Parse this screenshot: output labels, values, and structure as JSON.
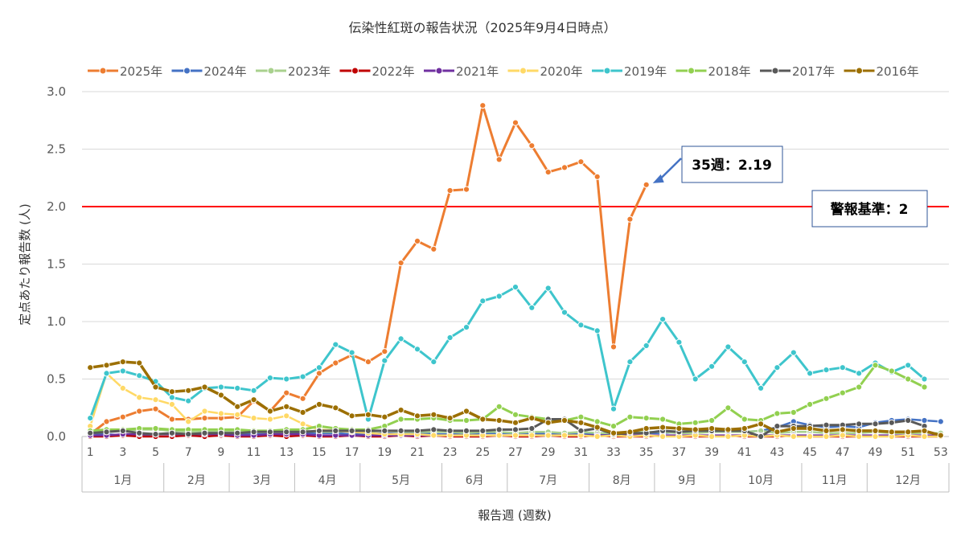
{
  "chart_data": {
    "type": "line",
    "title": "伝染性紅斑の報告状況（2025年9月4日時点）",
    "xlabel": "報告週 (週数)",
    "ylabel": "定点あたり報告数 (人)",
    "ylim": [
      0,
      3
    ],
    "yticks": [
      "0.0",
      "0.5",
      "1.0",
      "1.5",
      "2.0",
      "2.5",
      "3.0"
    ],
    "xticks": [
      1,
      3,
      5,
      7,
      9,
      11,
      13,
      15,
      17,
      19,
      21,
      23,
      25,
      27,
      29,
      31,
      33,
      35,
      37,
      39,
      41,
      43,
      45,
      47,
      49,
      51,
      53
    ],
    "month_groups": [
      {
        "label": "1月",
        "from": 1,
        "to": 5
      },
      {
        "label": "2月",
        "from": 6,
        "to": 9
      },
      {
        "label": "3月",
        "from": 10,
        "to": 13
      },
      {
        "label": "4月",
        "from": 14,
        "to": 17
      },
      {
        "label": "5月",
        "from": 18,
        "to": 22
      },
      {
        "label": "6月",
        "from": 23,
        "to": 26
      },
      {
        "label": "7月",
        "from": 27,
        "to": 31
      },
      {
        "label": "8月",
        "from": 32,
        "to": 35
      },
      {
        "label": "9月",
        "from": 36,
        "to": 39
      },
      {
        "label": "10月",
        "from": 40,
        "to": 44
      },
      {
        "label": "11月",
        "from": 45,
        "to": 48
      },
      {
        "label": "12月",
        "from": 49,
        "to": 53
      }
    ],
    "threshold": {
      "value": 2,
      "label": "警報基準：2",
      "color": "#ff0000"
    },
    "annotation": {
      "label": "35週：2.19",
      "week": 35,
      "value": 2.19
    },
    "legend_position": "top",
    "series": [
      {
        "name": "2025年",
        "color": "#ed7d31",
        "width": 3,
        "values": [
          0.02,
          0.13,
          0.17,
          0.22,
          0.24,
          0.15,
          0.15,
          0.16,
          0.16,
          0.17,
          0.31,
          0.22,
          0.38,
          0.33,
          0.55,
          0.64,
          0.71,
          0.65,
          0.74,
          1.51,
          1.7,
          1.63,
          2.14,
          2.15,
          2.88,
          2.41,
          2.73,
          2.53,
          2.3,
          2.34,
          2.39,
          2.26,
          0.78,
          1.89,
          2.19
        ]
      },
      {
        "name": "2024年",
        "color": "#4472c4",
        "width": 2.5,
        "values": [
          0.03,
          0.02,
          0.01,
          0.01,
          0.02,
          0.02,
          0.02,
          0.02,
          0.03,
          0.02,
          0.02,
          0.02,
          0.02,
          0.03,
          0.03,
          0.03,
          0.02,
          0.02,
          0.03,
          0.02,
          0.03,
          0.02,
          0.02,
          0.02,
          0.03,
          0.03,
          0.03,
          0.03,
          0.02,
          0.02,
          0.02,
          0.02,
          0.02,
          0.03,
          0.03,
          0.03,
          0.04,
          0.04,
          0.04,
          0.05,
          0.04,
          0.05,
          0.08,
          0.13,
          0.1,
          0.08,
          0.09,
          0.08,
          0.12,
          0.14,
          0.15,
          0.14,
          0.13
        ]
      },
      {
        "name": "2023年",
        "color": "#a9d18e",
        "width": 2.5,
        "values": [
          0.04,
          0.06,
          0.05,
          0.06,
          0.06,
          0.05,
          0.04,
          0.04,
          0.04,
          0.05,
          0.04,
          0.04,
          0.05,
          0.05,
          0.04,
          0.04,
          0.05,
          0.04,
          0.05,
          0.04,
          0.04,
          0.04,
          0.04,
          0.03,
          0.04,
          0.04,
          0.03,
          0.04,
          0.04,
          0.03,
          0.04,
          0.03,
          0.03,
          0.03,
          0.04,
          0.04,
          0.03,
          0.03,
          0.04,
          0.04,
          0.04,
          0.05,
          0.03,
          0.04,
          0.04,
          0.03,
          0.03,
          0.03,
          0.04,
          0.03,
          0.03,
          0.03,
          0.03
        ]
      },
      {
        "name": "2022年",
        "color": "#c00000",
        "width": 2.5,
        "values": [
          0.0,
          0.0,
          0.01,
          0.0,
          0.0,
          0.0,
          0.01,
          0.0,
          0.01,
          0.0,
          0.0,
          0.01,
          0.0,
          0.01,
          0.0,
          0.0,
          0.01,
          0.0,
          0.0,
          0.01,
          0.0,
          0.01,
          0.0,
          0.0,
          0.0,
          0.01,
          0.0,
          0.0,
          0.01,
          0.0,
          0.0,
          0.01,
          0.0,
          0.0,
          0.0,
          0.01,
          0.0,
          0.0,
          0.0,
          0.01,
          0.0,
          0.0,
          0.0,
          0.01,
          0.0,
          0.0,
          0.0,
          0.0,
          0.01,
          0.0,
          0.0,
          0.0,
          0.0
        ]
      },
      {
        "name": "2021年",
        "color": "#7030a0",
        "width": 2.5,
        "values": [
          0.01,
          0.01,
          0.02,
          0.02,
          0.02,
          0.02,
          0.02,
          0.02,
          0.02,
          0.01,
          0.01,
          0.02,
          0.02,
          0.02,
          0.01,
          0.01,
          0.01,
          0.01,
          0.01,
          0.01,
          0.01,
          0.01,
          0.01,
          0.01,
          0.01,
          0.01,
          0.01,
          0.01,
          0.01,
          0.01,
          0.01,
          0.01,
          0.01,
          0.01,
          0.01,
          0.01,
          0.01,
          0.01,
          0.01,
          0.01,
          0.01,
          0.01,
          0.01,
          0.01,
          0.01,
          0.01,
          0.01,
          0.01,
          0.01,
          0.01,
          0.01,
          0.01,
          0.01
        ]
      },
      {
        "name": "2020年",
        "color": "#ffd966",
        "width": 2.5,
        "values": [
          0.09,
          0.55,
          0.42,
          0.34,
          0.32,
          0.28,
          0.13,
          0.22,
          0.2,
          0.19,
          0.16,
          0.15,
          0.18,
          0.11,
          0.06,
          0.05,
          0.04,
          0.03,
          0.02,
          0.02,
          0.02,
          0.01,
          0.01,
          0.01,
          0.01,
          0.01,
          0.01,
          0.01,
          0.01,
          0.01,
          0.01,
          0.0,
          0.01,
          0.0,
          0.01,
          0.0,
          0.0,
          0.01,
          0.0,
          0.0,
          0.01,
          0.0,
          0.01,
          0.0,
          0.0,
          0.0,
          0.01,
          0.0,
          0.0,
          0.0,
          0.01,
          0.0,
          0.0
        ]
      },
      {
        "name": "2019年",
        "color": "#3ec5cc",
        "width": 3,
        "values": [
          0.16,
          0.55,
          0.57,
          0.53,
          0.48,
          0.34,
          0.31,
          0.42,
          0.43,
          0.42,
          0.4,
          0.51,
          0.5,
          0.52,
          0.6,
          0.8,
          0.73,
          0.15,
          0.66,
          0.85,
          0.76,
          0.65,
          0.86,
          0.95,
          1.18,
          1.22,
          1.3,
          1.12,
          1.29,
          1.08,
          0.97,
          0.92,
          0.24,
          0.65,
          0.79,
          1.02,
          0.82,
          0.5,
          0.61,
          0.78,
          0.65,
          0.42,
          0.6,
          0.73,
          0.55,
          0.58,
          0.6,
          0.55,
          0.64,
          0.56,
          0.62,
          0.5
        ]
      },
      {
        "name": "2018年",
        "color": "#92d050",
        "width": 3,
        "values": [
          0.05,
          0.06,
          0.06,
          0.07,
          0.07,
          0.06,
          0.06,
          0.06,
          0.06,
          0.06,
          0.05,
          0.05,
          0.06,
          0.06,
          0.09,
          0.07,
          0.06,
          0.06,
          0.09,
          0.15,
          0.15,
          0.16,
          0.14,
          0.14,
          0.15,
          0.26,
          0.19,
          0.17,
          0.15,
          0.14,
          0.17,
          0.13,
          0.09,
          0.17,
          0.16,
          0.15,
          0.11,
          0.12,
          0.14,
          0.25,
          0.15,
          0.14,
          0.2,
          0.21,
          0.28,
          0.33,
          0.38,
          0.43,
          0.62,
          0.57,
          0.5,
          0.43
        ]
      },
      {
        "name": "2017年",
        "color": "#595959",
        "width": 3,
        "values": [
          0.03,
          0.04,
          0.05,
          0.03,
          0.02,
          0.03,
          0.02,
          0.03,
          0.03,
          0.03,
          0.04,
          0.04,
          0.04,
          0.04,
          0.05,
          0.05,
          0.05,
          0.05,
          0.05,
          0.05,
          0.05,
          0.06,
          0.05,
          0.05,
          0.05,
          0.06,
          0.06,
          0.07,
          0.15,
          0.15,
          0.05,
          0.07,
          0.02,
          0.03,
          0.03,
          0.05,
          0.04,
          0.05,
          0.05,
          0.05,
          0.05,
          0.0,
          0.09,
          0.09,
          0.09,
          0.1,
          0.1,
          0.11,
          0.11,
          0.12,
          0.14,
          0.09
        ]
      },
      {
        "name": "2016年",
        "color": "#9c6f00",
        "width": 3.5,
        "values": [
          0.6,
          0.62,
          0.65,
          0.64,
          0.43,
          0.39,
          0.4,
          0.43,
          0.36,
          0.26,
          0.32,
          0.22,
          0.26,
          0.21,
          0.28,
          0.25,
          0.18,
          0.19,
          0.17,
          0.23,
          0.18,
          0.19,
          0.16,
          0.22,
          0.15,
          0.14,
          0.12,
          0.16,
          0.12,
          0.14,
          0.12,
          0.08,
          0.03,
          0.04,
          0.07,
          0.08,
          0.07,
          0.06,
          0.07,
          0.06,
          0.07,
          0.11,
          0.04,
          0.07,
          0.07,
          0.05,
          0.06,
          0.05,
          0.05,
          0.04,
          0.04,
          0.05,
          0.01
        ]
      }
    ]
  }
}
